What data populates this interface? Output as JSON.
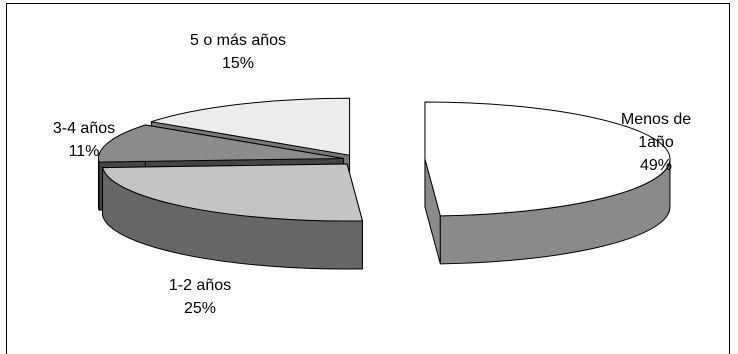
{
  "chart_data": {
    "type": "pie",
    "title": "",
    "slices": [
      {
        "label_lines": [
          "Menos de",
          "1año"
        ],
        "value": 49,
        "pct_text": "49%",
        "top": "#ffffff",
        "side": "#8a8a8a"
      },
      {
        "label_lines": [
          "1-2 años"
        ],
        "value": 25,
        "pct_text": "25%",
        "top": "#c4c4c4",
        "side": "#666666"
      },
      {
        "label_lines": [
          "3-4 años"
        ],
        "value": 11,
        "pct_text": "11%",
        "top": "#8c8c8c",
        "side": "#454545"
      },
      {
        "label_lines": [
          "5 o más años"
        ],
        "value": 15,
        "pct_text": "15%",
        "top": "#ececec",
        "side": "#777777"
      }
    ],
    "exploded": true,
    "three_d": true,
    "legend": "none"
  }
}
